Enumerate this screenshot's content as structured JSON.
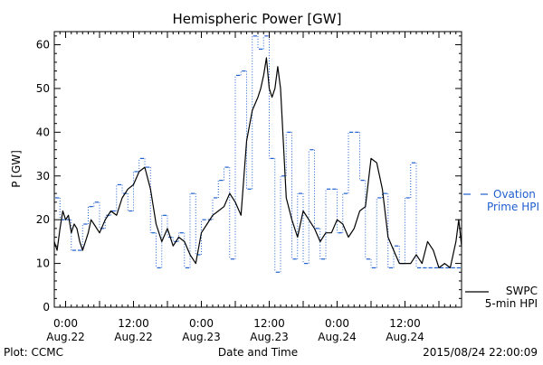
{
  "chart_data": {
    "type": "line",
    "title": "Hemispheric Power [GW]",
    "ylabel": "P [GW]",
    "xlabel": "Date and Time",
    "ylim": [
      0,
      63
    ],
    "yticks": [
      0,
      10,
      20,
      30,
      40,
      50,
      60
    ],
    "xlim": [
      "2015-08-21 22:00",
      "2015-08-24 22:00"
    ],
    "xticks": [
      {
        "x": "2015-08-22 00:00",
        "time": "0:00",
        "date": "Aug.22"
      },
      {
        "x": "2015-08-22 12:00",
        "time": "12:00",
        "date": "Aug.22"
      },
      {
        "x": "2015-08-23 00:00",
        "time": "0:00",
        "date": "Aug.23"
      },
      {
        "x": "2015-08-23 12:00",
        "time": "12:00",
        "date": "Aug.23"
      },
      {
        "x": "2015-08-24 00:00",
        "time": "0:00",
        "date": "Aug.24"
      },
      {
        "x": "2015-08-24 12:00",
        "time": "12:00",
        "date": "Aug.24"
      }
    ],
    "footer_left": "Plot: CCMC",
    "footer_right": "2015/08/24 22:00:09",
    "series": [
      {
        "name_lines": [
          "Ovation",
          "Prime HPI"
        ],
        "color": "#1f5fcf",
        "style": "blue stepped dash segments joined by dotted verticals",
        "x": [
          "2015-08-21 22:00",
          "2015-08-21 23:00",
          "2015-08-22 00:00",
          "2015-08-22 01:00",
          "2015-08-22 02:00",
          "2015-08-22 03:00",
          "2015-08-22 04:00",
          "2015-08-22 05:00",
          "2015-08-22 06:00",
          "2015-08-22 07:00",
          "2015-08-22 08:00",
          "2015-08-22 09:00",
          "2015-08-22 10:00",
          "2015-08-22 11:00",
          "2015-08-22 12:00",
          "2015-08-22 13:00",
          "2015-08-22 14:00",
          "2015-08-22 15:00",
          "2015-08-22 16:00",
          "2015-08-22 17:00",
          "2015-08-22 18:00",
          "2015-08-22 19:00",
          "2015-08-22 20:00",
          "2015-08-22 21:00",
          "2015-08-22 22:00",
          "2015-08-22 23:00",
          "2015-08-23 00:00",
          "2015-08-23 01:00",
          "2015-08-23 02:00",
          "2015-08-23 03:00",
          "2015-08-23 04:00",
          "2015-08-23 05:00",
          "2015-08-23 06:00",
          "2015-08-23 07:00",
          "2015-08-23 08:00",
          "2015-08-23 09:00",
          "2015-08-23 10:00",
          "2015-08-23 11:00",
          "2015-08-23 12:00",
          "2015-08-23 13:00",
          "2015-08-23 14:00",
          "2015-08-23 15:00",
          "2015-08-23 16:00",
          "2015-08-23 17:00",
          "2015-08-23 18:00",
          "2015-08-23 19:00",
          "2015-08-23 20:00",
          "2015-08-23 21:00",
          "2015-08-23 22:00",
          "2015-08-23 23:00",
          "2015-08-24 00:00",
          "2015-08-24 01:00",
          "2015-08-24 02:00",
          "2015-08-24 03:00",
          "2015-08-24 04:00",
          "2015-08-24 05:00",
          "2015-08-24 06:00",
          "2015-08-24 07:00",
          "2015-08-24 08:00",
          "2015-08-24 09:00",
          "2015-08-24 10:00",
          "2015-08-24 11:00",
          "2015-08-24 12:00",
          "2015-08-24 13:00",
          "2015-08-24 14:00",
          "2015-08-24 15:00",
          "2015-08-24 16:00",
          "2015-08-24 17:00",
          "2015-08-24 18:00",
          "2015-08-24 19:00",
          "2015-08-24 20:00",
          "2015-08-24 21:00"
        ],
        "values": [
          25,
          20,
          20,
          13,
          13,
          19,
          23,
          24,
          18,
          21,
          22,
          28,
          26,
          22,
          31,
          34,
          32,
          17,
          9,
          21,
          16,
          15,
          17,
          9,
          26,
          12,
          20,
          20,
          25,
          29,
          32,
          11,
          53,
          54,
          27,
          62,
          59,
          62,
          34,
          8,
          30,
          40,
          11,
          26,
          10,
          36,
          18,
          11,
          27,
          27,
          17,
          26,
          40,
          40,
          29,
          11,
          9,
          25,
          26,
          9,
          14,
          10,
          25,
          33,
          9,
          9,
          9,
          9,
          9,
          9,
          9,
          9
        ]
      },
      {
        "name_lines": [
          "SWPC",
          "5-min HPI"
        ],
        "color": "#000000",
        "style": "solid black line",
        "x": [
          "2015-08-21 22:00",
          "2015-08-21 22:30",
          "2015-08-21 23:00",
          "2015-08-21 23:30",
          "2015-08-22 00:00",
          "2015-08-22 00:30",
          "2015-08-22 01:00",
          "2015-08-22 01:30",
          "2015-08-22 02:00",
          "2015-08-22 02:30",
          "2015-08-22 03:00",
          "2015-08-22 03:30",
          "2015-08-22 04:00",
          "2015-08-22 04:30",
          "2015-08-22 05:00",
          "2015-08-22 06:00",
          "2015-08-22 07:00",
          "2015-08-22 08:00",
          "2015-08-22 09:00",
          "2015-08-22 10:00",
          "2015-08-22 11:00",
          "2015-08-22 12:00",
          "2015-08-22 13:00",
          "2015-08-22 14:00",
          "2015-08-22 15:00",
          "2015-08-22 16:00",
          "2015-08-22 17:00",
          "2015-08-22 18:00",
          "2015-08-22 19:00",
          "2015-08-22 20:00",
          "2015-08-22 21:00",
          "2015-08-22 22:00",
          "2015-08-22 23:00",
          "2015-08-23 00:00",
          "2015-08-23 01:00",
          "2015-08-23 02:00",
          "2015-08-23 03:00",
          "2015-08-23 04:00",
          "2015-08-23 05:00",
          "2015-08-23 06:00",
          "2015-08-23 07:00",
          "2015-08-23 08:00",
          "2015-08-23 09:00",
          "2015-08-23 10:00",
          "2015-08-23 10:30",
          "2015-08-23 11:00",
          "2015-08-23 11:30",
          "2015-08-23 12:00",
          "2015-08-23 12:30",
          "2015-08-23 13:00",
          "2015-08-23 13:30",
          "2015-08-23 14:00",
          "2015-08-23 15:00",
          "2015-08-23 16:00",
          "2015-08-23 17:00",
          "2015-08-23 18:00",
          "2015-08-23 19:00",
          "2015-08-23 20:00",
          "2015-08-23 21:00",
          "2015-08-23 22:00",
          "2015-08-23 23:00",
          "2015-08-24 00:00",
          "2015-08-24 01:00",
          "2015-08-24 02:00",
          "2015-08-24 03:00",
          "2015-08-24 04:00",
          "2015-08-24 05:00",
          "2015-08-24 06:00",
          "2015-08-24 07:00",
          "2015-08-24 08:00",
          "2015-08-24 09:00",
          "2015-08-24 10:00",
          "2015-08-24 11:00",
          "2015-08-24 12:00",
          "2015-08-24 13:00",
          "2015-08-24 14:00",
          "2015-08-24 15:00",
          "2015-08-24 16:00",
          "2015-08-24 17:00",
          "2015-08-24 18:00",
          "2015-08-24 19:00",
          "2015-08-24 20:00",
          "2015-08-24 21:00",
          "2015-08-24 21:30",
          "2015-08-24 22:00"
        ],
        "values": [
          15,
          13,
          18,
          22,
          20,
          21,
          17,
          19,
          18,
          15,
          13,
          15,
          17,
          20,
          19,
          17,
          20,
          22,
          21,
          25,
          27,
          28,
          31,
          32,
          27,
          19,
          15,
          18,
          14,
          16,
          15,
          12,
          10,
          17,
          19,
          21,
          22,
          23,
          26,
          24,
          21,
          38,
          45,
          48,
          50,
          53,
          57,
          50,
          48,
          50,
          55,
          50,
          25,
          20,
          16,
          22,
          20,
          18,
          15,
          17,
          17,
          20,
          19,
          16,
          18,
          22,
          23,
          34,
          33,
          27,
          16,
          13,
          10,
          10,
          10,
          12,
          10,
          15,
          13,
          9,
          10,
          9,
          15,
          20,
          14
        ]
      }
    ]
  }
}
